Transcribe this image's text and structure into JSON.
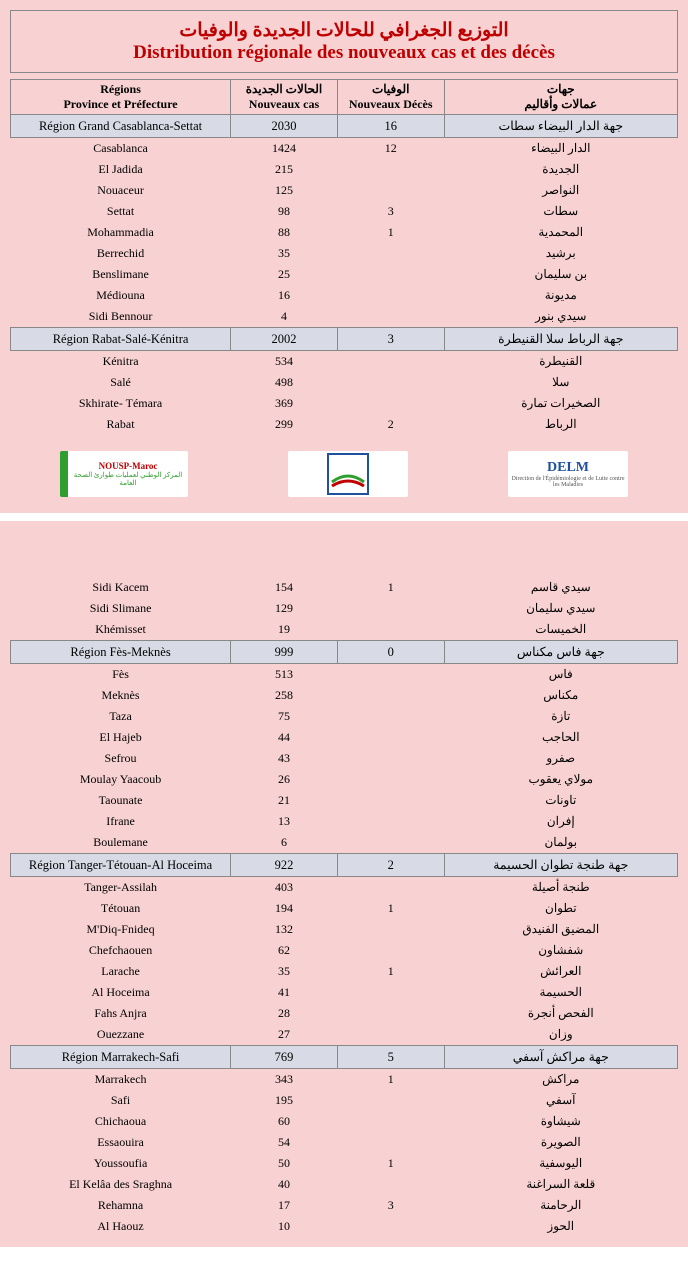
{
  "title_ar": "التوزيع الجغرافي للحالات الجديدة والوفيات",
  "title_fr": "Distribution régionale des nouveaux cas et des décès",
  "headers": {
    "region_fr": "Régions",
    "region_fr2": "Province et Préfecture",
    "cas_ar": "الحالات الجديدة",
    "cas_fr": "Nouveaux cas",
    "deces_ar": "الوفيات",
    "deces_fr": "Nouveaux Décès",
    "ar1": "جهات",
    "ar2": "عمالات وأقاليم"
  },
  "logos": {
    "nousp": "NOUSP-Maroc",
    "nousp_sub": "المركز الوطني لعمليات طوارئ الصحة العامة",
    "delm": "DELM",
    "delm_sub": "Direction de l'Épidémiologie et de Lutte contre les Maladies"
  },
  "sections": [
    {
      "page": 1,
      "rows": [
        {
          "type": "region",
          "fr": "Région Grand Casablanca-Settat",
          "cas": "2030",
          "deces": "16",
          "ar": "جهة الدار البيضاء سطات"
        },
        {
          "type": "prov",
          "fr": "Casablanca",
          "cas": "1424",
          "deces": "12",
          "ar": "الدار البيضاء"
        },
        {
          "type": "prov",
          "fr": "El Jadida",
          "cas": "215",
          "deces": "",
          "ar": "الجديدة"
        },
        {
          "type": "prov",
          "fr": "Nouaceur",
          "cas": "125",
          "deces": "",
          "ar": "النواصر"
        },
        {
          "type": "prov",
          "fr": "Settat",
          "cas": "98",
          "deces": "3",
          "ar": "سطات"
        },
        {
          "type": "prov",
          "fr": "Mohammadia",
          "cas": "88",
          "deces": "1",
          "ar": "المحمدية"
        },
        {
          "type": "prov",
          "fr": "Berrechid",
          "cas": "35",
          "deces": "",
          "ar": "برشيد"
        },
        {
          "type": "prov",
          "fr": "Benslimane",
          "cas": "25",
          "deces": "",
          "ar": "بن سليمان"
        },
        {
          "type": "prov",
          "fr": "Médiouna",
          "cas": "16",
          "deces": "",
          "ar": "مديونة"
        },
        {
          "type": "prov",
          "fr": "Sidi Bennour",
          "cas": "4",
          "deces": "",
          "ar": "سيدي بنور"
        },
        {
          "type": "region",
          "fr": "Région Rabat-Salé-Kénitra",
          "cas": "2002",
          "deces": "3",
          "ar": "جهة الرباط سلا القنيطرة"
        },
        {
          "type": "prov",
          "fr": "Kénitra",
          "cas": "534",
          "deces": "",
          "ar": "القنيطرة"
        },
        {
          "type": "prov",
          "fr": "Salé",
          "cas": "498",
          "deces": "",
          "ar": "سلا"
        },
        {
          "type": "prov",
          "fr": "Skhirate- Témara",
          "cas": "369",
          "deces": "",
          "ar": "الصخيرات تمارة"
        },
        {
          "type": "prov",
          "fr": "Rabat",
          "cas": "299",
          "deces": "2",
          "ar": "الرباط"
        }
      ]
    },
    {
      "page": 2,
      "rows": [
        {
          "type": "prov",
          "fr": "Sidi Kacem",
          "cas": "154",
          "deces": "1",
          "ar": "سيدي قاسم"
        },
        {
          "type": "prov",
          "fr": "Sidi Slimane",
          "cas": "129",
          "deces": "",
          "ar": "سيدي سليمان"
        },
        {
          "type": "prov",
          "fr": "Khémisset",
          "cas": "19",
          "deces": "",
          "ar": "الخميسات"
        },
        {
          "type": "region",
          "fr": "Région Fès-Meknès",
          "cas": "999",
          "deces": "0",
          "ar": "جهة فاس مكناس"
        },
        {
          "type": "prov",
          "fr": "Fès",
          "cas": "513",
          "deces": "",
          "ar": "فاس"
        },
        {
          "type": "prov",
          "fr": "Meknès",
          "cas": "258",
          "deces": "",
          "ar": "مكناس"
        },
        {
          "type": "prov",
          "fr": "Taza",
          "cas": "75",
          "deces": "",
          "ar": "تازة"
        },
        {
          "type": "prov",
          "fr": "El  Hajeb",
          "cas": "44",
          "deces": "",
          "ar": "الحاجب"
        },
        {
          "type": "prov",
          "fr": "Sefrou",
          "cas": "43",
          "deces": "",
          "ar": "صفرو"
        },
        {
          "type": "prov",
          "fr": "Moulay Yaacoub",
          "cas": "26",
          "deces": "",
          "ar": "مولاي يعقوب"
        },
        {
          "type": "prov",
          "fr": "Taounate",
          "cas": "21",
          "deces": "",
          "ar": "تاونات"
        },
        {
          "type": "prov",
          "fr": "Ifrane",
          "cas": "13",
          "deces": "",
          "ar": "إفران"
        },
        {
          "type": "prov",
          "fr": "Boulemane",
          "cas": "6",
          "deces": "",
          "ar": "بولمان"
        },
        {
          "type": "region",
          "fr": "Région Tanger-Tétouan-Al Hoceima",
          "cas": "922",
          "deces": "2",
          "ar": "جهة طنجة تطوان الحسيمة"
        },
        {
          "type": "prov",
          "fr": "Tanger-Assilah",
          "cas": "403",
          "deces": "",
          "ar": "طنجة أصيلة"
        },
        {
          "type": "prov",
          "fr": "Tétouan",
          "cas": "194",
          "deces": "1",
          "ar": "تطوان"
        },
        {
          "type": "prov",
          "fr": "M'Diq-Fnideq",
          "cas": "132",
          "deces": "",
          "ar": "المضيق الفنيدق"
        },
        {
          "type": "prov",
          "fr": "Chefchaouen",
          "cas": "62",
          "deces": "",
          "ar": "شفشاون"
        },
        {
          "type": "prov",
          "fr": "Larache",
          "cas": "35",
          "deces": "1",
          "ar": "العرائش"
        },
        {
          "type": "prov",
          "fr": "Al Hoceima",
          "cas": "41",
          "deces": "",
          "ar": "الحسيمة"
        },
        {
          "type": "prov",
          "fr": "Fahs Anjra",
          "cas": "28",
          "deces": "",
          "ar": "الفحص أنجرة"
        },
        {
          "type": "prov",
          "fr": "Ouezzane",
          "cas": "27",
          "deces": "",
          "ar": "وزان"
        },
        {
          "type": "region",
          "fr": "Région Marrakech-Safi",
          "cas": "769",
          "deces": "5",
          "ar": "جهة مراكش آسفي"
        },
        {
          "type": "prov",
          "fr": "Marrakech",
          "cas": "343",
          "deces": "1",
          "ar": "مراكش"
        },
        {
          "type": "prov",
          "fr": "Safi",
          "cas": "195",
          "deces": "",
          "ar": "آسفي"
        },
        {
          "type": "prov",
          "fr": "Chichaoua",
          "cas": "60",
          "deces": "",
          "ar": "شيشاوة"
        },
        {
          "type": "prov",
          "fr": "Essaouira",
          "cas": "54",
          "deces": "",
          "ar": "الصويرة"
        },
        {
          "type": "prov",
          "fr": "Youssoufia",
          "cas": "50",
          "deces": "1",
          "ar": "اليوسفية"
        },
        {
          "type": "prov",
          "fr": "El Kelâa des Sraghna",
          "cas": "40",
          "deces": "",
          "ar": "قلعة السراغنة"
        },
        {
          "type": "prov",
          "fr": "Rehamna",
          "cas": "17",
          "deces": "3",
          "ar": "الرحامنة"
        },
        {
          "type": "prov",
          "fr": "Al  Haouz",
          "cas": "10",
          "deces": "",
          "ar": "الحوز"
        }
      ]
    }
  ]
}
